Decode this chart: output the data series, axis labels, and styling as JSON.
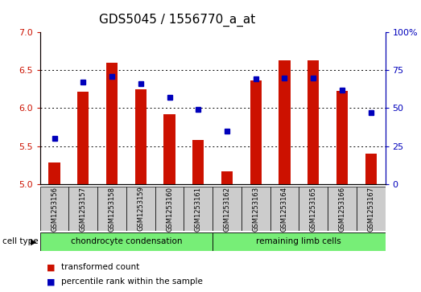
{
  "title": "GDS5045 / 1556770_a_at",
  "samples": [
    "GSM1253156",
    "GSM1253157",
    "GSM1253158",
    "GSM1253159",
    "GSM1253160",
    "GSM1253161",
    "GSM1253162",
    "GSM1253163",
    "GSM1253164",
    "GSM1253165",
    "GSM1253166",
    "GSM1253167"
  ],
  "transformed_count": [
    5.28,
    6.22,
    6.6,
    6.25,
    5.92,
    5.58,
    5.17,
    6.36,
    6.63,
    6.63,
    6.23,
    5.4
  ],
  "percentile_rank": [
    30,
    67,
    71,
    66,
    57,
    49,
    35,
    69,
    70,
    70,
    62,
    47
  ],
  "ylim_left": [
    5.0,
    7.0
  ],
  "ylim_right": [
    0,
    100
  ],
  "yticks_left": [
    5.0,
    5.5,
    6.0,
    6.5,
    7.0
  ],
  "yticks_right": [
    0,
    25,
    50,
    75,
    100
  ],
  "ytick_labels_right": [
    "0",
    "25",
    "50",
    "75",
    "100%"
  ],
  "bar_color": "#cc1100",
  "dot_color": "#0000bb",
  "bar_bottom": 5.0,
  "group1_label": "chondrocyte condensation",
  "group2_label": "remaining limb cells",
  "group1_count": 6,
  "cell_type_label": "cell type",
  "legend1": "transformed count",
  "legend2": "percentile rank within the sample",
  "group_bg_color": "#77ee77",
  "sample_box_color": "#cccccc",
  "title_fontsize": 11,
  "tick_fontsize": 8,
  "bar_width": 0.4
}
